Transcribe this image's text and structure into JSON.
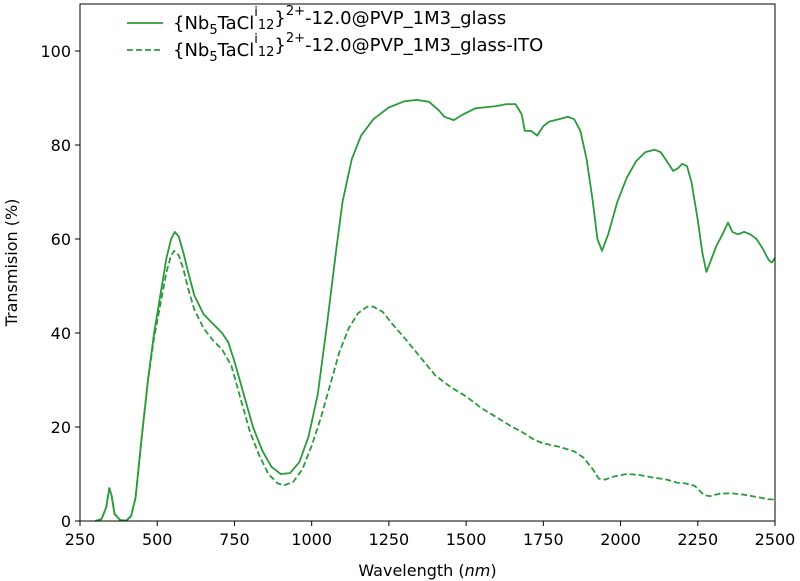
{
  "chart_data": {
    "type": "line",
    "xlabel": "Wavelength (nm)",
    "xlabel_parts": [
      "Wavelength (",
      "nm",
      ")"
    ],
    "ylabel": "Transmision (%)",
    "xlim": [
      250,
      2500
    ],
    "ylim": [
      0,
      110
    ],
    "xticks": [
      250,
      500,
      750,
      1000,
      1250,
      1500,
      1750,
      2000,
      2250,
      2500
    ],
    "yticks": [
      0,
      20,
      40,
      60,
      80,
      100
    ],
    "grid": false,
    "legend_position": "top-left",
    "series": [
      {
        "name": "{Nb5TaCli12}2+-12.0@PVP_1M3_glass",
        "label_parts": {
          "base": "{Nb",
          "s1": "5",
          "mid": "TaCl",
          "sup1": "i",
          "s2": "12",
          "close": "}",
          "sup2": "2+",
          "tail": "-12.0@PVP_1M3_glass"
        },
        "color": "#2a9a3a",
        "linestyle": "solid",
        "points": [
          [
            300,
            0
          ],
          [
            320,
            0.4
          ],
          [
            335,
            3
          ],
          [
            345,
            7
          ],
          [
            352,
            5.5
          ],
          [
            362,
            1.5
          ],
          [
            380,
            0.2
          ],
          [
            400,
            0.1
          ],
          [
            415,
            1
          ],
          [
            430,
            5
          ],
          [
            450,
            18
          ],
          [
            470,
            30
          ],
          [
            490,
            40
          ],
          [
            510,
            48
          ],
          [
            530,
            56
          ],
          [
            545,
            60
          ],
          [
            557,
            61.5
          ],
          [
            570,
            60.5
          ],
          [
            585,
            57
          ],
          [
            600,
            53
          ],
          [
            620,
            48
          ],
          [
            650,
            44
          ],
          [
            680,
            42
          ],
          [
            710,
            40
          ],
          [
            730,
            38
          ],
          [
            750,
            34
          ],
          [
            780,
            27
          ],
          [
            810,
            20
          ],
          [
            840,
            15
          ],
          [
            870,
            11.5
          ],
          [
            900,
            10
          ],
          [
            930,
            10.2
          ],
          [
            960,
            12.5
          ],
          [
            990,
            18
          ],
          [
            1020,
            27
          ],
          [
            1050,
            42
          ],
          [
            1080,
            58
          ],
          [
            1100,
            68
          ],
          [
            1130,
            77
          ],
          [
            1160,
            82
          ],
          [
            1200,
            85.5
          ],
          [
            1250,
            88
          ],
          [
            1300,
            89.3
          ],
          [
            1340,
            89.6
          ],
          [
            1380,
            89.2
          ],
          [
            1410,
            87.5
          ],
          [
            1430,
            86
          ],
          [
            1460,
            85.3
          ],
          [
            1490,
            86.5
          ],
          [
            1530,
            87.8
          ],
          [
            1560,
            88
          ],
          [
            1600,
            88.3
          ],
          [
            1630,
            88.7
          ],
          [
            1660,
            88.7
          ],
          [
            1680,
            86.5
          ],
          [
            1690,
            83
          ],
          [
            1710,
            83
          ],
          [
            1730,
            82
          ],
          [
            1750,
            84
          ],
          [
            1770,
            85
          ],
          [
            1800,
            85.5
          ],
          [
            1830,
            86
          ],
          [
            1850,
            85.5
          ],
          [
            1870,
            83
          ],
          [
            1890,
            77
          ],
          [
            1910,
            68
          ],
          [
            1925,
            60
          ],
          [
            1940,
            57.5
          ],
          [
            1960,
            61
          ],
          [
            1990,
            68
          ],
          [
            2020,
            73
          ],
          [
            2050,
            76.5
          ],
          [
            2080,
            78.5
          ],
          [
            2110,
            79
          ],
          [
            2130,
            78.5
          ],
          [
            2150,
            76.5
          ],
          [
            2170,
            74.5
          ],
          [
            2185,
            75
          ],
          [
            2200,
            76
          ],
          [
            2215,
            75.5
          ],
          [
            2230,
            72
          ],
          [
            2250,
            64
          ],
          [
            2265,
            57
          ],
          [
            2278,
            53
          ],
          [
            2290,
            55
          ],
          [
            2310,
            58.5
          ],
          [
            2330,
            61
          ],
          [
            2348,
            63.5
          ],
          [
            2362,
            61.5
          ],
          [
            2380,
            61
          ],
          [
            2400,
            61.5
          ],
          [
            2420,
            61
          ],
          [
            2440,
            60
          ],
          [
            2460,
            58
          ],
          [
            2480,
            55.5
          ],
          [
            2490,
            55
          ],
          [
            2500,
            56
          ]
        ]
      },
      {
        "name": "{Nb5TaCli12}2+-12.0@PVP_1M3_glass-ITO",
        "label_parts": {
          "base": "{Nb",
          "s1": "5",
          "mid": "TaCl",
          "sup1": "i",
          "s2": "12",
          "close": "}",
          "sup2": "2+",
          "tail": "-12.0@PVP_1M3_glass-ITO"
        },
        "color": "#2a9a3a",
        "linestyle": "dashed",
        "points": [
          [
            300,
            0
          ],
          [
            320,
            0.4
          ],
          [
            335,
            3
          ],
          [
            345,
            7
          ],
          [
            352,
            5.5
          ],
          [
            362,
            1.5
          ],
          [
            380,
            0.2
          ],
          [
            400,
            0.1
          ],
          [
            415,
            1
          ],
          [
            430,
            5
          ],
          [
            450,
            18
          ],
          [
            470,
            30
          ],
          [
            490,
            39
          ],
          [
            510,
            46
          ],
          [
            530,
            53
          ],
          [
            545,
            56.5
          ],
          [
            555,
            57.5
          ],
          [
            570,
            56.5
          ],
          [
            585,
            53.5
          ],
          [
            600,
            49.5
          ],
          [
            620,
            45
          ],
          [
            650,
            41
          ],
          [
            680,
            38.5
          ],
          [
            710,
            36.5
          ],
          [
            740,
            33
          ],
          [
            770,
            26
          ],
          [
            800,
            19
          ],
          [
            830,
            14
          ],
          [
            860,
            10
          ],
          [
            890,
            8
          ],
          [
            910,
            7.6
          ],
          [
            940,
            8.3
          ],
          [
            970,
            11
          ],
          [
            1000,
            16
          ],
          [
            1030,
            22
          ],
          [
            1060,
            29
          ],
          [
            1090,
            36
          ],
          [
            1120,
            41
          ],
          [
            1150,
            44.2
          ],
          [
            1180,
            45.6
          ],
          [
            1200,
            45.6
          ],
          [
            1230,
            44.5
          ],
          [
            1260,
            42
          ],
          [
            1300,
            39
          ],
          [
            1350,
            35
          ],
          [
            1400,
            31
          ],
          [
            1450,
            28.5
          ],
          [
            1500,
            26.5
          ],
          [
            1550,
            24
          ],
          [
            1600,
            22
          ],
          [
            1650,
            20
          ],
          [
            1680,
            19
          ],
          [
            1720,
            17.3
          ],
          [
            1750,
            16.5
          ],
          [
            1800,
            15.8
          ],
          [
            1850,
            14.8
          ],
          [
            1880,
            13.5
          ],
          [
            1910,
            11
          ],
          [
            1930,
            9
          ],
          [
            1950,
            8.8
          ],
          [
            1980,
            9.5
          ],
          [
            2020,
            10
          ],
          [
            2060,
            9.8
          ],
          [
            2100,
            9.3
          ],
          [
            2150,
            8.8
          ],
          [
            2180,
            8.2
          ],
          [
            2210,
            8
          ],
          [
            2240,
            7.5
          ],
          [
            2270,
            5.5
          ],
          [
            2290,
            5.3
          ],
          [
            2320,
            5.8
          ],
          [
            2360,
            5.9
          ],
          [
            2400,
            5.6
          ],
          [
            2450,
            5
          ],
          [
            2480,
            4.6
          ],
          [
            2500,
            4.6
          ]
        ]
      }
    ]
  }
}
